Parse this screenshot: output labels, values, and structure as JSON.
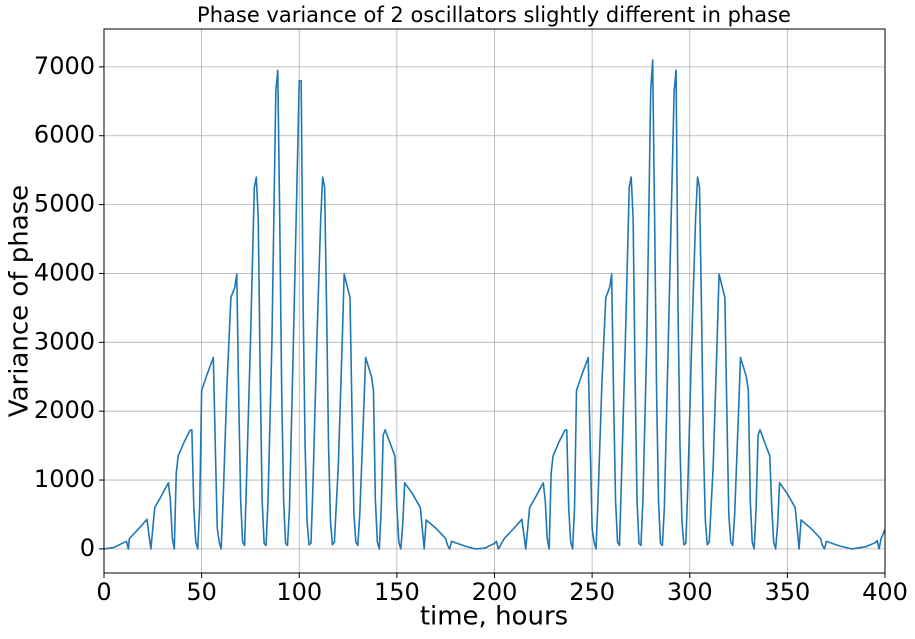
{
  "chart_data": {
    "type": "line",
    "title": "Phase variance of 2 oscillators slightly different in phase",
    "xlabel": "time, hours",
    "ylabel": "Variance of phase",
    "color": "#1f77b4",
    "grid": true,
    "xlim": [
      0,
      400
    ],
    "ylim": [
      -350,
      7550
    ],
    "xticks": [
      0,
      50,
      100,
      150,
      200,
      250,
      300,
      350,
      400
    ],
    "yticks": [
      0,
      1000,
      2000,
      3000,
      4000,
      5000,
      6000,
      7000
    ],
    "x": [
      0,
      5,
      10,
      11.5,
      12.5,
      13,
      18,
      22,
      24,
      26,
      29,
      33,
      34,
      35,
      36,
      37,
      38,
      41,
      44,
      45,
      46,
      47,
      48,
      49,
      50,
      53,
      56,
      57,
      58,
      59,
      60,
      61,
      63,
      65,
      67,
      68,
      69,
      70,
      71,
      72,
      73,
      75,
      77,
      78,
      79,
      80,
      81,
      82,
      83,
      84,
      86,
      88,
      89,
      90,
      91,
      92,
      93,
      94,
      95,
      97,
      100,
      101,
      102,
      103,
      104,
      105,
      106,
      107,
      109,
      111,
      112,
      113,
      114,
      115,
      116,
      117,
      118,
      120,
      122,
      123,
      126,
      127,
      128,
      129,
      130,
      131,
      133,
      134,
      137,
      138,
      139,
      140,
      141,
      142,
      143,
      144,
      147,
      149,
      150,
      151,
      152,
      153,
      154,
      158,
      162,
      163,
      164,
      165,
      170,
      175,
      176,
      177,
      178,
      185,
      190,
      195,
      200,
      201,
      202,
      205,
      210,
      214,
      216,
      218,
      221,
      225,
      226,
      227,
      228,
      229,
      230,
      233,
      236,
      237,
      238,
      239,
      240,
      241,
      242,
      245,
      248,
      249,
      250,
      251,
      252,
      253,
      255,
      257,
      259,
      260,
      261,
      262,
      263,
      264,
      265,
      267,
      269,
      270,
      271,
      272,
      273,
      274,
      275,
      276,
      278,
      280,
      281,
      282,
      283,
      284,
      285,
      286,
      287,
      289,
      292,
      293,
      294,
      295,
      296,
      297,
      298,
      299,
      301,
      303,
      304,
      305,
      306,
      307,
      308,
      309,
      310,
      312,
      314,
      315,
      318,
      319,
      320,
      321,
      322,
      323,
      325,
      326,
      329,
      330,
      331,
      332,
      333,
      334,
      335,
      336,
      339,
      341,
      342,
      343,
      344,
      345,
      346,
      350,
      354,
      355,
      356,
      357,
      362,
      367,
      368,
      369,
      370,
      377,
      383,
      390,
      395,
      396,
      397,
      398,
      400
    ],
    "values": [
      0,
      20,
      90,
      110,
      0,
      150,
      300,
      430,
      0,
      600,
      750,
      960,
      700,
      150,
      0,
      1100,
      1350,
      1550,
      1720,
      1730,
      600,
      100,
      0,
      600,
      2300,
      2550,
      2780,
      1500,
      300,
      100,
      0,
      700,
      2400,
      3650,
      3800,
      3990,
      2200,
      700,
      100,
      50,
      1000,
      3000,
      5250,
      5400,
      4800,
      2500,
      700,
      80,
      50,
      700,
      3000,
      6650,
      6950,
      4800,
      2300,
      700,
      80,
      50,
      600,
      3000,
      6800,
      6800,
      3500,
      1500,
      400,
      60,
      80,
      900,
      3000,
      4800,
      5400,
      5250,
      3500,
      1500,
      400,
      60,
      100,
      1200,
      3000,
      3990,
      3650,
      2000,
      500,
      100,
      50,
      500,
      2000,
      2780,
      2500,
      2300,
      700,
      100,
      0,
      600,
      1650,
      1730,
      1500,
      1350,
      600,
      100,
      0,
      350,
      960,
      800,
      600,
      300,
      0,
      420,
      300,
      150,
      50,
      0,
      110,
      40,
      0,
      10,
      80,
      110,
      0,
      150,
      300,
      430,
      0,
      600,
      750,
      960,
      700,
      150,
      0,
      1100,
      1350,
      1550,
      1720,
      1730,
      600,
      100,
      0,
      600,
      2300,
      2550,
      2780,
      1500,
      300,
      100,
      0,
      700,
      2400,
      3650,
      3800,
      3990,
      2200,
      700,
      100,
      50,
      1000,
      3000,
      5250,
      5400,
      4800,
      2500,
      700,
      80,
      50,
      700,
      3000,
      6650,
      7100,
      4800,
      2300,
      700,
      80,
      50,
      600,
      3000,
      6650,
      6950,
      3500,
      1500,
      400,
      60,
      80,
      900,
      3000,
      4800,
      5400,
      5250,
      3500,
      1500,
      400,
      60,
      100,
      1200,
      3000,
      3990,
      3650,
      2000,
      500,
      100,
      50,
      500,
      2000,
      2780,
      2500,
      2300,
      700,
      100,
      0,
      600,
      1650,
      1730,
      1500,
      1350,
      600,
      100,
      0,
      350,
      960,
      800,
      600,
      300,
      0,
      420,
      300,
      150,
      50,
      0,
      110,
      40,
      0,
      30,
      90,
      120,
      0,
      150,
      280
    ]
  }
}
